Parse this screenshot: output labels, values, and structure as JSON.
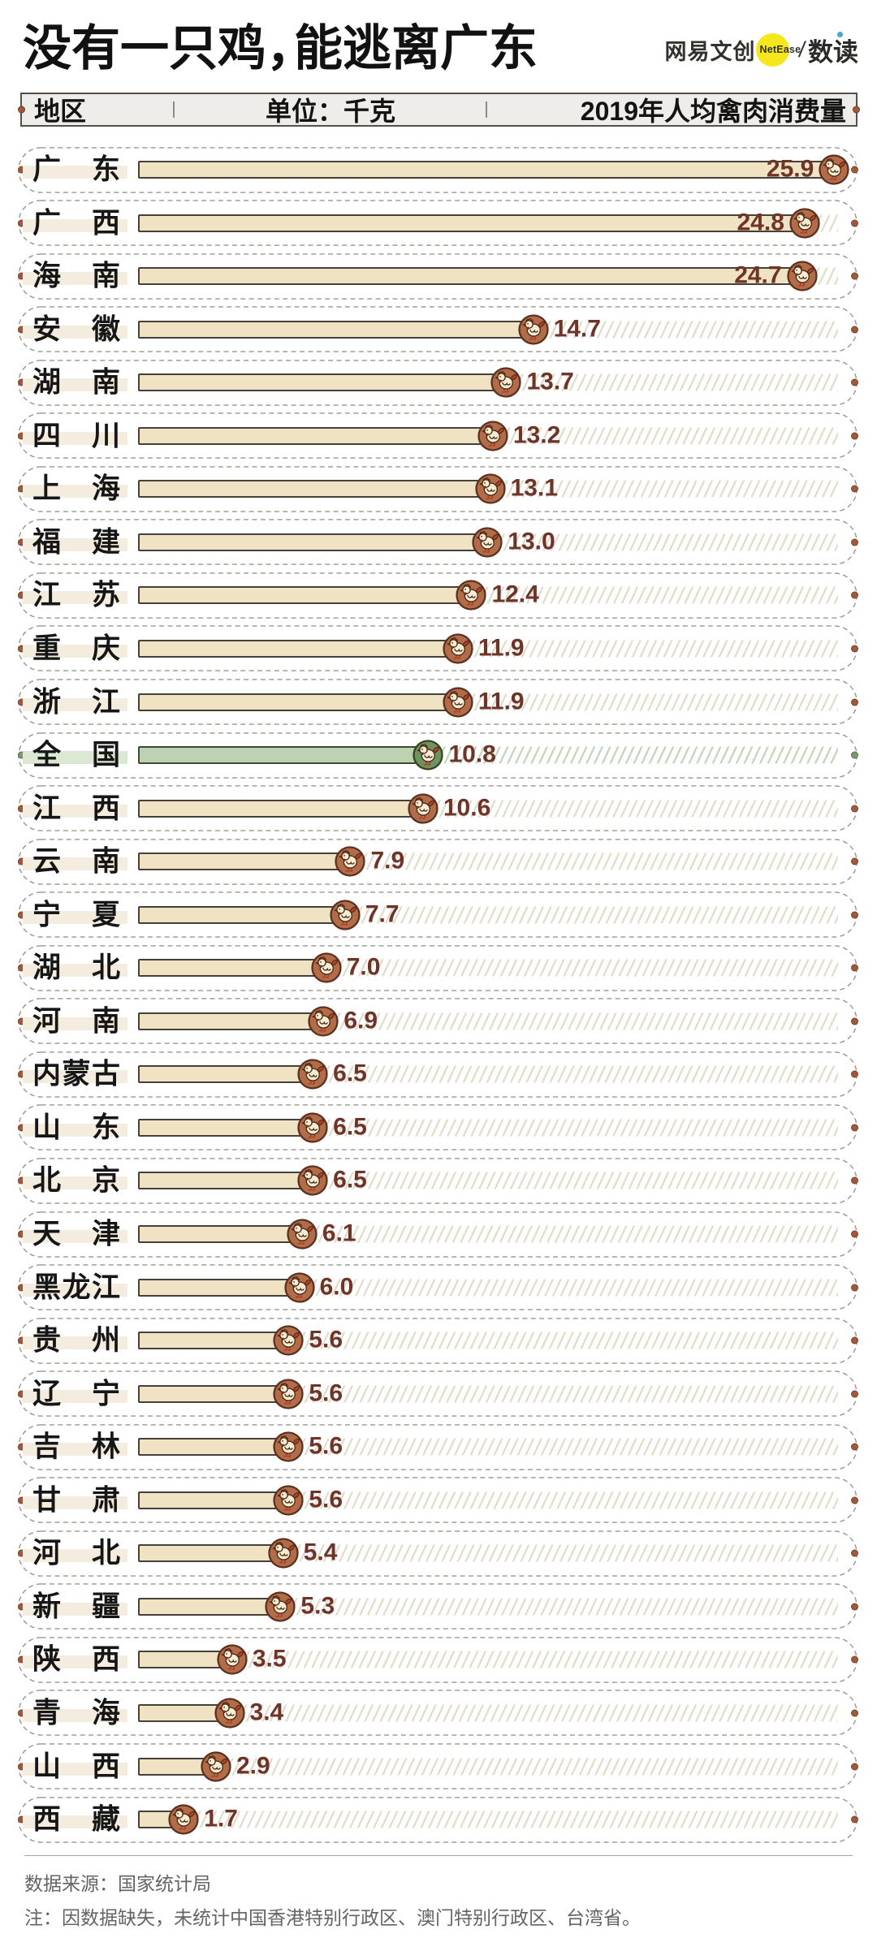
{
  "title": "没有一只鸡，能逃离广东",
  "logo": {
    "brand": "网易文创",
    "badge": "NetEase",
    "slash": "/",
    "sub": "数读",
    "badge_color": "#f6e71c",
    "sub_dot_color": "#45a7d8"
  },
  "columns": {
    "region": "地区",
    "unit": "单位：千克",
    "measure": "2019年人均禽肉消费量"
  },
  "footer": {
    "source": "数据来源：国家统计局",
    "note": "注：因数据缺失，未统计中国香港特别行政区、澳门特别行政区、台湾省。"
  },
  "chart_data": {
    "type": "bar",
    "orientation": "horizontal",
    "title": "没有一只鸡，能逃离广东",
    "unit": "千克",
    "measure_label": "2019年人均禽肉消费量",
    "highlight_category": "全国",
    "categories": [
      "广东",
      "广西",
      "海南",
      "安徽",
      "湖南",
      "四川",
      "上海",
      "福建",
      "江苏",
      "重庆",
      "浙江",
      "全国",
      "江西",
      "云南",
      "宁夏",
      "湖北",
      "河南",
      "内蒙古",
      "山东",
      "北京",
      "天津",
      "黑龙江",
      "贵州",
      "辽宁",
      "吉林",
      "甘肃",
      "河北",
      "新疆",
      "陕西",
      "青海",
      "山西",
      "西藏"
    ],
    "values": [
      "25.9",
      "24.8",
      "24.7",
      "14.7",
      "13.7",
      "13.2",
      "13.1",
      "13.0",
      "12.4",
      "11.9",
      "11.9",
      "10.8",
      "10.6",
      "7.9",
      "7.7",
      "7.0",
      "6.9",
      "6.5",
      "6.5",
      "6.5",
      "6.1",
      "6.0",
      "5.6",
      "5.6",
      "5.6",
      "5.6",
      "5.4",
      "5.3",
      "3.5",
      "3.4",
      "2.9",
      "1.7"
    ]
  },
  "colors": {
    "bar_fill": "#f0e3c4",
    "bar_border": "#46403a",
    "national_bar_fill": "#bdd2b1",
    "national_bar_border": "#3e4a36",
    "icon_circle": "#ad6144",
    "national_icon_circle": "#6f9360",
    "value_text": "#6f3428",
    "strip_bg": "#efede9",
    "accent_dot": "#a0593a"
  }
}
